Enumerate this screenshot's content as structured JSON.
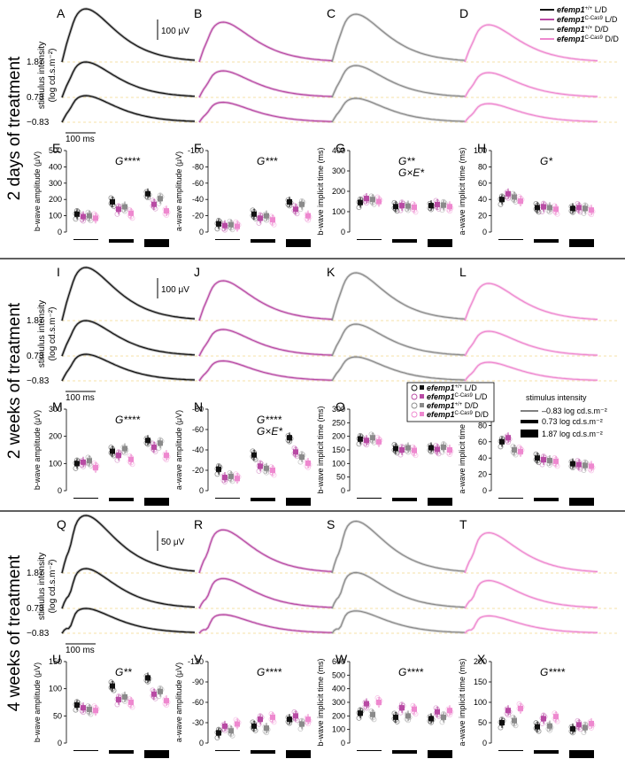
{
  "colors": {
    "wt_ld": "#111111",
    "cas_ld": "#b84aa4",
    "wt_dd": "#8a8a8a",
    "cas_dd": "#ee88cf",
    "guide": "#f2d98a"
  },
  "legend": {
    "entries": [
      {
        "name": "efemp1",
        "sup": "+/+",
        "cond": "L/D",
        "color": "#111111"
      },
      {
        "name": "efemp1",
        "sup": "C-Cas9",
        "cond": "L/D",
        "color": "#b84aa4"
      },
      {
        "name": "efemp1",
        "sup": "+/+",
        "cond": "D/D",
        "color": "#8a8a8a"
      },
      {
        "name": "efemp1",
        "sup": "C-Cas9",
        "cond": "D/D",
        "color": "#ee88cf"
      }
    ]
  },
  "stim_legend": {
    "title": "stimulus intensity",
    "items": [
      "–0.83 log cd.s.m⁻²",
      "0.73 log cd.s.m⁻²",
      "1.87 log cd.s.m⁻²"
    ]
  },
  "sections": [
    {
      "label": "2 days of treatment",
      "trace_letters": [
        "A",
        "B",
        "C",
        "D"
      ],
      "intensities": [
        "1.87",
        "0.73",
        "−0.83"
      ],
      "ylabel_top": "stimulus intensity",
      "ylabel_bottom": "(log cd.s.m⁻²)",
      "amp_scale": "100 μV",
      "time_scale": "100 ms",
      "stat_letters": [
        "E",
        "F",
        "G",
        "H"
      ],
      "stats": [
        "G****",
        "G***",
        "G**\nG×E*",
        "G*"
      ]
    },
    {
      "label": "2 weeks of treatment",
      "trace_letters": [
        "I",
        "J",
        "K",
        "L"
      ],
      "intensities": [
        "1.87",
        "0.73",
        "−0.83"
      ],
      "ylabel_top": "stimulus intensity",
      "ylabel_bottom": "(log cd.s.m⁻²)",
      "amp_scale": "100 μV",
      "time_scale": "100 ms",
      "stat_letters": [
        "M",
        "N",
        "O",
        "P"
      ],
      "stats": [
        "G****",
        "G****\nG×E*",
        "",
        ""
      ]
    },
    {
      "label": "4 weeks of treatment",
      "trace_letters": [
        "Q",
        "R",
        "S",
        "T"
      ],
      "intensities": [
        "1.87",
        "0.73",
        "−0.83"
      ],
      "ylabel_top": "stimulus intensity",
      "ylabel_bottom": "(log cd.s.m⁻²)",
      "amp_scale": "50 μV",
      "time_scale": "100 ms",
      "stat_letters": [
        "U",
        "V",
        "W",
        "X"
      ],
      "stats": [
        "G**",
        "G****",
        "G****",
        "G****"
      ]
    }
  ],
  "chart_data": [
    {
      "panel": "E",
      "type": "scatter",
      "ylabel": "b-wave amplitude (μV)",
      "ylim": [
        0,
        500
      ],
      "yticks": [
        0,
        100,
        200,
        300,
        400,
        500
      ],
      "categories": [
        "-0.83",
        "0.73",
        "1.87"
      ],
      "series": [
        {
          "name": "efemp1+/+ L/D",
          "values": [
            110,
            185,
            235
          ]
        },
        {
          "name": "efemp1C-Cas9 L/D",
          "values": [
            95,
            140,
            170
          ]
        },
        {
          "name": "efemp1+/+ D/D",
          "values": [
            100,
            155,
            205
          ]
        },
        {
          "name": "efemp1C-Cas9 D/D",
          "values": [
            85,
            115,
            130
          ]
        }
      ]
    },
    {
      "panel": "F",
      "type": "scatter",
      "ylabel": "a-wave amplitude (μV)",
      "ylim": [
        0,
        -100
      ],
      "yticks": [
        0,
        -20,
        -40,
        -60,
        -80,
        -100
      ],
      "categories": [
        "-0.83",
        "0.73",
        "1.87"
      ],
      "series": [
        {
          "name": "efemp1+/+ L/D",
          "values": [
            -10,
            -22,
            -37
          ]
        },
        {
          "name": "efemp1C-Cas9 L/D",
          "values": [
            -8,
            -17,
            -28
          ]
        },
        {
          "name": "efemp1+/+ D/D",
          "values": [
            -9,
            -20,
            -34
          ]
        },
        {
          "name": "efemp1C-Cas9 D/D",
          "values": [
            -7,
            -15,
            -20
          ]
        }
      ]
    },
    {
      "panel": "G",
      "type": "scatter",
      "ylabel": "b-wave implicit time (ms)",
      "ylim": [
        0,
        400
      ],
      "yticks": [
        0,
        100,
        200,
        300,
        400
      ],
      "categories": [
        "-0.83",
        "0.73",
        "1.87"
      ],
      "series": [
        {
          "name": "efemp1+/+ L/D",
          "values": [
            145,
            125,
            130
          ]
        },
        {
          "name": "efemp1C-Cas9 L/D",
          "values": [
            165,
            130,
            135
          ]
        },
        {
          "name": "efemp1+/+ D/D",
          "values": [
            160,
            128,
            132
          ]
        },
        {
          "name": "efemp1C-Cas9 D/D",
          "values": [
            150,
            122,
            125
          ]
        }
      ]
    },
    {
      "panel": "H",
      "type": "scatter",
      "ylabel": "a-wave implicit time (ms)",
      "ylim": [
        0,
        100
      ],
      "yticks": [
        0,
        20,
        40,
        60,
        80,
        100
      ],
      "categories": [
        "-0.83",
        "0.73",
        "1.87"
      ],
      "series": [
        {
          "name": "efemp1+/+ L/D",
          "values": [
            40,
            30,
            29
          ]
        },
        {
          "name": "efemp1C-Cas9 L/D",
          "values": [
            47,
            31,
            30
          ]
        },
        {
          "name": "efemp1+/+ D/D",
          "values": [
            43,
            30,
            29
          ]
        },
        {
          "name": "efemp1C-Cas9 D/D",
          "values": [
            38,
            28,
            27
          ]
        }
      ]
    },
    {
      "panel": "M",
      "type": "scatter",
      "ylabel": "b-wave amplitude (μV)",
      "ylim": [
        0,
        300
      ],
      "yticks": [
        0,
        100,
        200,
        300
      ],
      "categories": [
        "-0.83",
        "0.73",
        "1.87"
      ],
      "series": [
        {
          "name": "efemp1+/+ L/D",
          "values": [
            100,
            145,
            185
          ]
        },
        {
          "name": "efemp1C-Cas9 L/D",
          "values": [
            105,
            130,
            160
          ]
        },
        {
          "name": "efemp1+/+ D/D",
          "values": [
            110,
            155,
            175
          ]
        },
        {
          "name": "efemp1C-Cas9 D/D",
          "values": [
            85,
            115,
            130
          ]
        }
      ]
    },
    {
      "panel": "N",
      "type": "scatter",
      "ylabel": "a-wave amplitude (μV)",
      "ylim": [
        0,
        -80
      ],
      "yticks": [
        0,
        -20,
        -40,
        -60,
        -80
      ],
      "categories": [
        "-0.83",
        "0.73",
        "1.87"
      ],
      "series": [
        {
          "name": "efemp1+/+ L/D",
          "values": [
            -21,
            -35,
            -52
          ]
        },
        {
          "name": "efemp1C-Cas9 L/D",
          "values": [
            -13,
            -24,
            -38
          ]
        },
        {
          "name": "efemp1+/+ D/D",
          "values": [
            -14,
            -22,
            -33
          ]
        },
        {
          "name": "efemp1C-Cas9 D/D",
          "values": [
            -12,
            -20,
            -27
          ]
        }
      ]
    },
    {
      "panel": "O",
      "type": "scatter",
      "ylabel": "b-wave implicit time (ms)",
      "ylim": [
        0,
        300
      ],
      "yticks": [
        0,
        50,
        100,
        150,
        200,
        250,
        300
      ],
      "categories": [
        "-0.83",
        "0.73",
        "1.87"
      ],
      "series": [
        {
          "name": "efemp1+/+ L/D",
          "values": [
            190,
            155,
            158
          ]
        },
        {
          "name": "efemp1C-Cas9 L/D",
          "values": [
            185,
            150,
            152
          ]
        },
        {
          "name": "efemp1+/+ D/D",
          "values": [
            195,
            158,
            160
          ]
        },
        {
          "name": "efemp1C-Cas9 D/D",
          "values": [
            180,
            148,
            150
          ]
        }
      ]
    },
    {
      "panel": "P",
      "type": "scatter",
      "ylabel": "a-wave implicit time (ms)",
      "ylim": [
        0,
        100
      ],
      "yticks": [
        0,
        20,
        40,
        60,
        80,
        100
      ],
      "categories": [
        "-0.83",
        "0.73",
        "1.87"
      ],
      "series": [
        {
          "name": "efemp1+/+ L/D",
          "values": [
            60,
            40,
            33
          ]
        },
        {
          "name": "efemp1C-Cas9 L/D",
          "values": [
            65,
            38,
            32
          ]
        },
        {
          "name": "efemp1+/+ D/D",
          "values": [
            50,
            37,
            31
          ]
        },
        {
          "name": "efemp1C-Cas9 D/D",
          "values": [
            48,
            36,
            30
          ]
        }
      ]
    },
    {
      "panel": "U",
      "type": "scatter",
      "ylabel": "b-wave amplitude (μV)",
      "ylim": [
        0,
        150
      ],
      "yticks": [
        0,
        50,
        100,
        150
      ],
      "categories": [
        "-0.83",
        "0.73",
        "1.87"
      ],
      "series": [
        {
          "name": "efemp1+/+ L/D",
          "values": [
            70,
            105,
            120
          ]
        },
        {
          "name": "efemp1C-Cas9 L/D",
          "values": [
            65,
            80,
            90
          ]
        },
        {
          "name": "efemp1+/+ D/D",
          "values": [
            62,
            85,
            95
          ]
        },
        {
          "name": "efemp1C-Cas9 D/D",
          "values": [
            60,
            75,
            78
          ]
        }
      ]
    },
    {
      "panel": "V",
      "type": "scatter",
      "ylabel": "a-wave amplitude (μV)",
      "ylim": [
        0,
        -120
      ],
      "yticks": [
        0,
        -30,
        -60,
        -90,
        -120
      ],
      "categories": [
        "-0.83",
        "0.73",
        "1.87"
      ],
      "series": [
        {
          "name": "efemp1+/+ L/D",
          "values": [
            -15,
            -25,
            -35
          ]
        },
        {
          "name": "efemp1C-Cas9 L/D",
          "values": [
            -25,
            -35,
            -40
          ]
        },
        {
          "name": "efemp1+/+ D/D",
          "values": [
            -18,
            -22,
            -28
          ]
        },
        {
          "name": "efemp1C-Cas9 D/D",
          "values": [
            -28,
            -38,
            -35
          ]
        }
      ]
    },
    {
      "panel": "W",
      "type": "scatter",
      "ylabel": "b-wave implicit time (ms)",
      "ylim": [
        0,
        600
      ],
      "yticks": [
        0,
        100,
        200,
        300,
        400,
        500,
        600
      ],
      "categories": [
        "-0.83",
        "0.73",
        "1.87"
      ],
      "series": [
        {
          "name": "efemp1+/+ L/D",
          "values": [
            220,
            190,
            180
          ]
        },
        {
          "name": "efemp1C-Cas9 L/D",
          "values": [
            290,
            260,
            230
          ]
        },
        {
          "name": "efemp1+/+ D/D",
          "values": [
            210,
            200,
            190
          ]
        },
        {
          "name": "efemp1C-Cas9 D/D",
          "values": [
            300,
            250,
            240
          ]
        }
      ]
    },
    {
      "panel": "X",
      "type": "scatter",
      "ylabel": "a-wave implicit time (ms)",
      "ylim": [
        0,
        200
      ],
      "yticks": [
        0,
        50,
        100,
        150,
        200
      ],
      "categories": [
        "-0.83",
        "0.73",
        "1.87"
      ],
      "series": [
        {
          "name": "efemp1+/+ L/D",
          "values": [
            50,
            40,
            35
          ]
        },
        {
          "name": "efemp1C-Cas9 L/D",
          "values": [
            80,
            60,
            45
          ]
        },
        {
          "name": "efemp1+/+ D/D",
          "values": [
            55,
            42,
            38
          ]
        },
        {
          "name": "efemp1C-Cas9 D/D",
          "values": [
            85,
            65,
            48
          ]
        }
      ]
    }
  ]
}
